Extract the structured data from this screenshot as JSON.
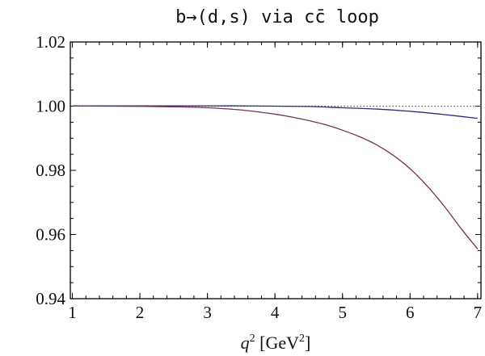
{
  "chart_data": {
    "type": "line",
    "title": "b→(d,s) via cc̄ loop",
    "xlabel": {
      "base": "q",
      "sup1": "2",
      "unit_open": " [GeV",
      "sup2": "2",
      "unit_close": "]"
    },
    "ylabel": "",
    "xlim": [
      0.97,
      7.05
    ],
    "ylim": [
      0.94,
      1.02
    ],
    "xticks": [
      1,
      2,
      3,
      4,
      5,
      6,
      7
    ],
    "yticks": [
      0.94,
      0.96,
      0.98,
      1.0,
      1.02
    ],
    "ytick_labels": [
      "0.94",
      "0.96",
      "0.98",
      "1.00",
      "1.02"
    ],
    "grid": false,
    "reference_line": {
      "y": 1.0,
      "style": "dotted",
      "color": "#555555"
    },
    "series": [
      {
        "color": "#2b2b7a",
        "x": [
          1,
          1.5,
          2,
          2.5,
          3,
          3.5,
          4,
          4.5,
          5,
          5.5,
          6,
          6.5,
          7
        ],
        "y": [
          1.0001,
          1.0001,
          1.0001,
          1.0001,
          1.0001,
          1.0001,
          1.0,
          0.9999,
          0.9995,
          0.9991,
          0.9984,
          0.9974,
          0.9962
        ]
      },
      {
        "color": "#7a2e55",
        "x": [
          1,
          1.5,
          2,
          2.5,
          3,
          3.5,
          4,
          4.25,
          4.5,
          4.75,
          5,
          5.25,
          5.5,
          5.75,
          6,
          6.25,
          6.5,
          6.75,
          7
        ],
        "y": [
          1.0001,
          1.0,
          0.99995,
          0.9998,
          0.9995,
          0.9988,
          0.9975,
          0.9966,
          0.9955,
          0.9942,
          0.9925,
          0.9905,
          0.988,
          0.9847,
          0.9805,
          0.9752,
          0.969,
          0.962,
          0.9555
        ]
      }
    ]
  }
}
